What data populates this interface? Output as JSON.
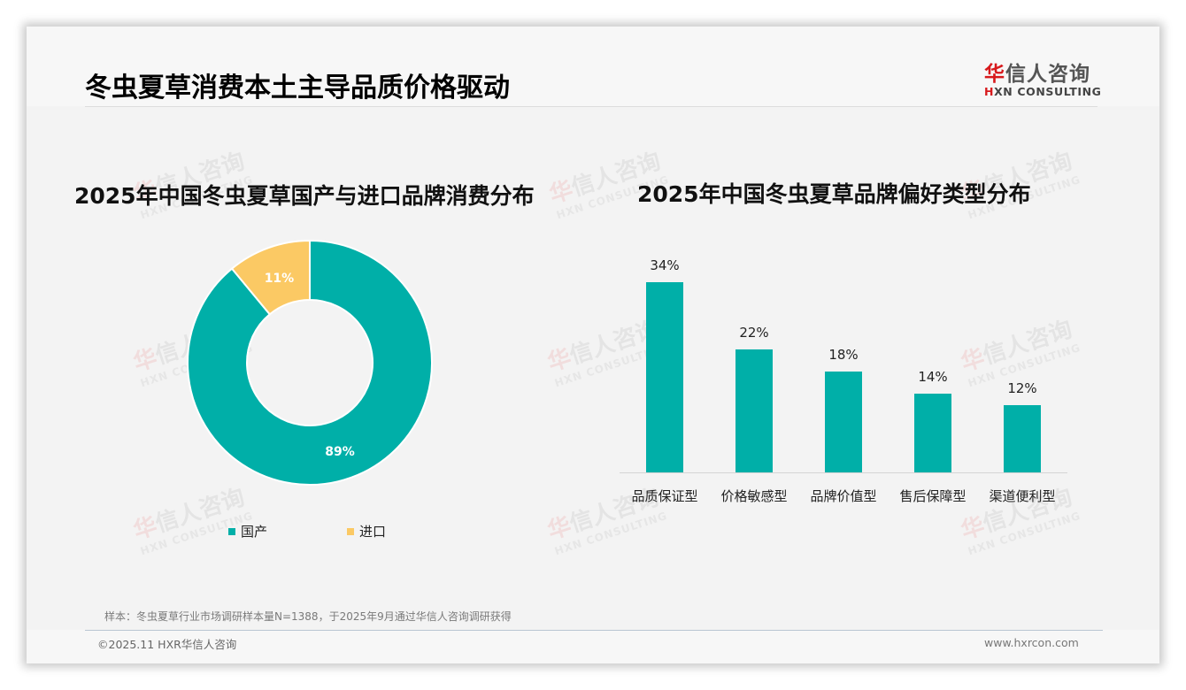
{
  "header": {
    "title": "冬虫夏草消费本土主导品质价格驱动",
    "logo_cn_first": "华",
    "logo_cn_rest": "信人咨询",
    "logo_en_first": "H",
    "logo_en_rest": "XN CONSULTING"
  },
  "watermark": {
    "cn_first": "华",
    "cn_rest": "信人咨询",
    "en": "HXN CONSULTING"
  },
  "colors": {
    "primary": "#00afa8",
    "secondary": "#fbc964",
    "brand_red": "#d7191c",
    "background": "#f3f3f3"
  },
  "chart_data": [
    {
      "type": "pie",
      "variant": "donut",
      "title": "2025年中国冬虫夏草国产与进口品牌消费分布",
      "categories": [
        "国产",
        "进口"
      ],
      "values": [
        89,
        11
      ],
      "labels": [
        "89%",
        "11%"
      ],
      "colors": [
        "#00afa8",
        "#fbc964"
      ],
      "legend_position": "bottom"
    },
    {
      "type": "bar",
      "title": "2025年中国冬虫夏草品牌偏好类型分布",
      "categories": [
        "品质保证型",
        "价格敏感型",
        "品牌价值型",
        "售后保障型",
        "渠道便利型"
      ],
      "values": [
        34,
        22,
        18,
        14,
        12
      ],
      "labels": [
        "34%",
        "22%",
        "18%",
        "14%",
        "12%"
      ],
      "unit": "%",
      "color": "#00afa8",
      "xlabel": "",
      "ylabel": "",
      "ylim": [
        0,
        34
      ],
      "grid": false
    }
  ],
  "footer": {
    "note": "样本：冬虫夏草行业市场调研样本量N=1388，于2025年9月通过华信人咨询调研获得",
    "copyright": "©2025.11 HXR华信人咨询",
    "website": "www.hxrcon.com"
  }
}
